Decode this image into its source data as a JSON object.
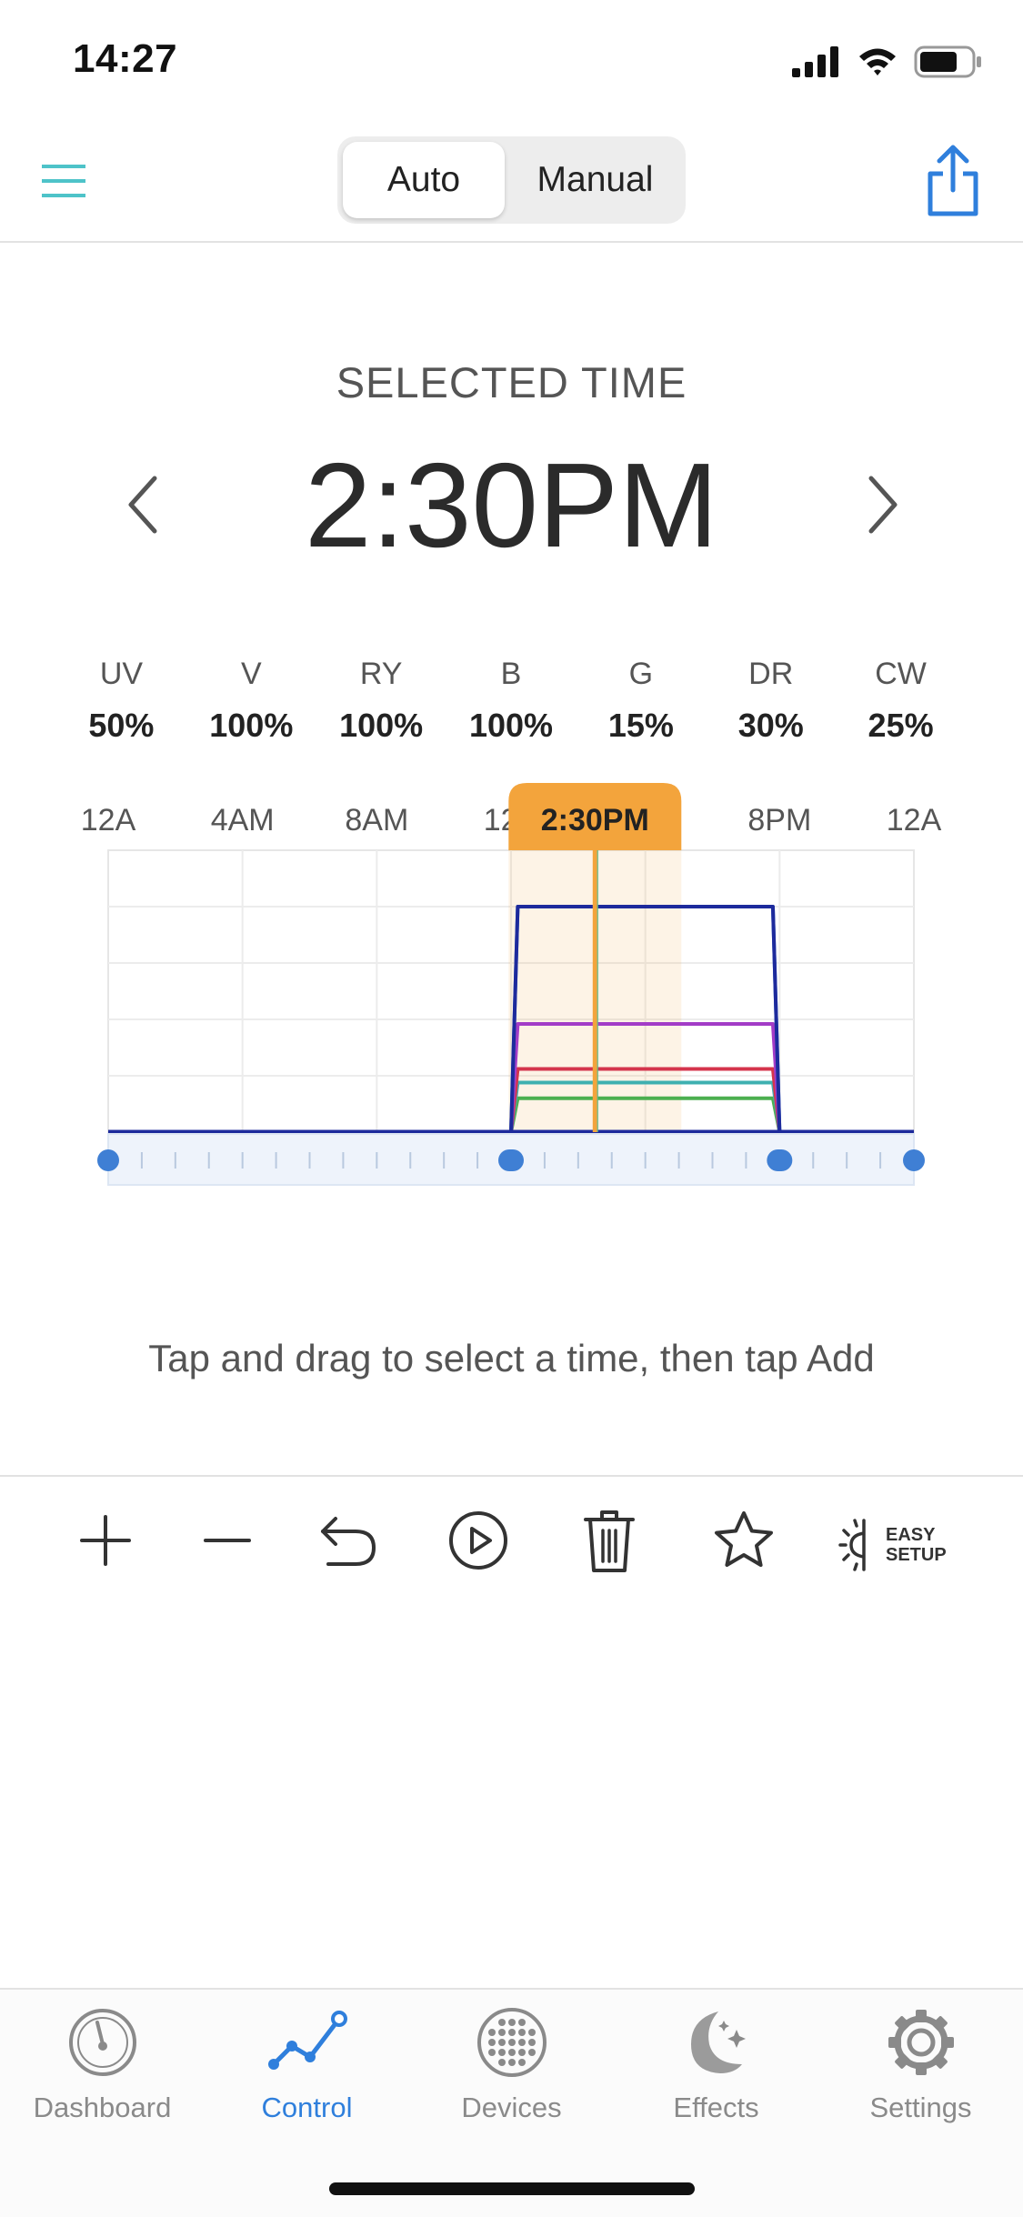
{
  "status_bar": {
    "time": "14:27"
  },
  "header": {
    "segments": [
      {
        "label": "Auto",
        "selected": true
      },
      {
        "label": "Manual",
        "selected": false
      }
    ]
  },
  "selected_time": {
    "label": "SELECTED TIME",
    "value": "2:30PM"
  },
  "channels": [
    {
      "name": "UV",
      "value": "50%"
    },
    {
      "name": "V",
      "value": "100%"
    },
    {
      "name": "RY",
      "value": "100%"
    },
    {
      "name": "B",
      "value": "100%"
    },
    {
      "name": "G",
      "value": "15%"
    },
    {
      "name": "DR",
      "value": "30%"
    },
    {
      "name": "CW",
      "value": "25%"
    }
  ],
  "chart": {
    "time_labels": [
      "12A",
      "4AM",
      "8AM",
      "12P",
      "8PM",
      "12A"
    ],
    "selected_label": "2:30PM",
    "colors": {
      "accent": "#f3a43c",
      "navy": "#1d2a9c",
      "blue": "#2f7fdc",
      "purple": "#a33cc7",
      "red": "#d4344c",
      "teal": "#3fb0b0",
      "green": "#4caf50"
    }
  },
  "chart_data": {
    "type": "line",
    "x_unit": "hour of day",
    "x_range": [
      0,
      24
    ],
    "y_range": [
      0,
      100
    ],
    "grid": true,
    "selected_x": 14.5,
    "ramp": {
      "up_start": 12,
      "up_end": 12.2,
      "down_start": 19.8,
      "down_end": 20
    },
    "series": [
      {
        "color": "#1d2a9c",
        "peak": 100
      },
      {
        "color": "#2f7fdc",
        "peak": 100
      },
      {
        "color": "#a33cc7",
        "peak": 48
      },
      {
        "color": "#d4344c",
        "peak": 28
      },
      {
        "color": "#3fb0b0",
        "peak": 22
      },
      {
        "color": "#4caf50",
        "peak": 15
      }
    ],
    "schedule_points": [
      0,
      12,
      20,
      24
    ]
  },
  "hint": "Tap and drag to select a time, then tap Add",
  "toolbar": {
    "easy_setup_line1": "EASY",
    "easy_setup_line2": "SETUP"
  },
  "tabs": [
    {
      "label": "Dashboard",
      "icon": "dashboard-icon",
      "active": false
    },
    {
      "label": "Control",
      "icon": "control-icon",
      "active": true
    },
    {
      "label": "Devices",
      "icon": "devices-icon",
      "active": false
    },
    {
      "label": "Effects",
      "icon": "effects-icon",
      "active": false
    },
    {
      "label": "Settings",
      "icon": "settings-icon",
      "active": false
    }
  ]
}
